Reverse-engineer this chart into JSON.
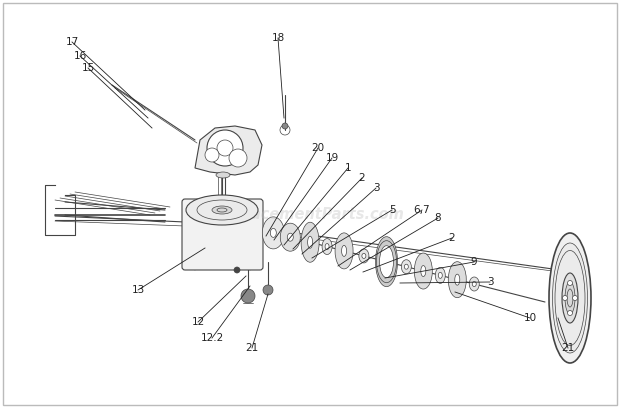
{
  "background_color": "#ffffff",
  "border_color": "#bbbbbb",
  "watermark_text": "ReplacementParts.com",
  "watermark_color": "#bbbbbb",
  "watermark_alpha": 0.35,
  "line_color": "#444444",
  "label_color": "#222222",
  "label_fontsize": 7.5
}
